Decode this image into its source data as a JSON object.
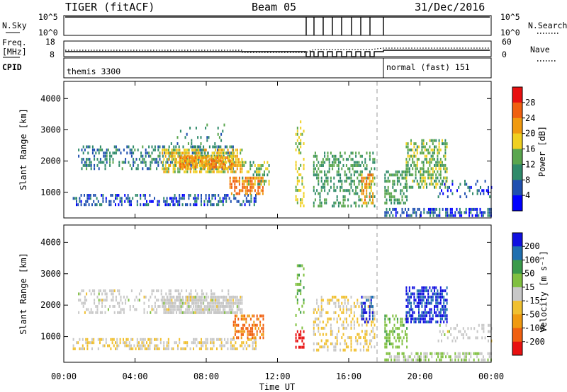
{
  "header": {
    "radar": "TIGER (fitACF)",
    "beam": "Beam 05",
    "date": "31/Dec/2016"
  },
  "top_panel": {
    "left_label": "N.Sky",
    "right_label": "N.Search",
    "left_ticks": [
      "10^5",
      "10^0"
    ],
    "right_ticks": [
      "10^5",
      "10^0"
    ]
  },
  "freq_panel": {
    "left_label_1": "Freq.",
    "left_label_2": "[MHz]",
    "left_ticks": [
      "18",
      "8"
    ],
    "right_label": "Nave",
    "right_ticks": [
      "60",
      "0"
    ]
  },
  "cpid_panel": {
    "label": "CPID",
    "segment_1": "themis 3300",
    "segment_2": "normal (fast) 151"
  },
  "colors": {
    "power_scale": [
      "#0000ff",
      "#1f4fb0",
      "#2f8a6a",
      "#5aa64e",
      "#f0d020",
      "#f09a10",
      "#f06010",
      "#e81010"
    ],
    "velocity_scale": [
      "#e81010",
      "#f06010",
      "#f09a10",
      "#f0c030",
      "#c8c8c8",
      "#80c040",
      "#3a9a4a",
      "#1f6fb0",
      "#1010e0"
    ]
  },
  "chart_data": [
    {
      "type": "heatmap",
      "title": "",
      "xlabel": "Time UT",
      "ylabel": "Slant Range [km]",
      "x_ticks": [
        "00:00",
        "04:00",
        "08:00",
        "12:00",
        "16:00",
        "20:00",
        "00:00"
      ],
      "x_range_hours": [
        0,
        24
      ],
      "y_ticks": [
        "1000",
        "2000",
        "3000",
        "4000"
      ],
      "ylim": [
        180,
        4550
      ],
      "colorbar_label": "Power [dB]",
      "colorbar_ticks": [
        "4",
        "8",
        "12",
        "16",
        "20",
        "24",
        "28"
      ],
      "colorbar_range": [
        0,
        32
      ],
      "echo_regions": [
        {
          "t0": 0.5,
          "t1": 10.8,
          "r0": 600,
          "r1": 950,
          "value": 6,
          "density": 0.45
        },
        {
          "t0": 0.8,
          "t1": 9.5,
          "r0": 1800,
          "r1": 2500,
          "value": 9,
          "density": 0.35
        },
        {
          "t0": 5.5,
          "t1": 10.0,
          "r0": 1700,
          "r1": 2400,
          "value": 18,
          "density": 0.7
        },
        {
          "t0": 6.5,
          "t1": 9.5,
          "r0": 1850,
          "r1": 2150,
          "value": 22,
          "density": 0.85
        },
        {
          "t0": 9.3,
          "t1": 11.2,
          "r0": 1000,
          "r1": 1500,
          "value": 24,
          "density": 0.6
        },
        {
          "t0": 10.0,
          "t1": 11.5,
          "r0": 1300,
          "r1": 2000,
          "value": 14,
          "density": 0.35
        },
        {
          "t0": 6.0,
          "t1": 9.0,
          "r0": 2500,
          "r1": 3200,
          "value": 10,
          "density": 0.12
        },
        {
          "t0": 13.0,
          "t1": 13.5,
          "r0": 600,
          "r1": 3300,
          "value": 16,
          "density": 0.35
        },
        {
          "t0": 14.0,
          "t1": 17.5,
          "r0": 600,
          "r1": 2300,
          "value": 12,
          "density": 0.35
        },
        {
          "t0": 16.7,
          "t1": 17.4,
          "r0": 700,
          "r1": 1600,
          "value": 22,
          "density": 0.55
        },
        {
          "t0": 18.0,
          "t1": 19.3,
          "r0": 700,
          "r1": 1700,
          "value": 12,
          "density": 0.55
        },
        {
          "t0": 19.2,
          "t1": 21.5,
          "r0": 1200,
          "r1": 2700,
          "value": 14,
          "density": 0.5
        },
        {
          "t0": 18.0,
          "t1": 24.0,
          "r0": 250,
          "r1": 500,
          "value": 6,
          "density": 0.6
        },
        {
          "t0": 21.0,
          "t1": 24.0,
          "r0": 900,
          "r1": 1400,
          "value": 6,
          "density": 0.2
        }
      ]
    },
    {
      "type": "heatmap",
      "title": "",
      "xlabel": "Time UT",
      "ylabel": "Slant Range [km]",
      "x_ticks": [
        "00:00",
        "04:00",
        "08:00",
        "12:00",
        "16:00",
        "20:00",
        "00:00"
      ],
      "x_range_hours": [
        0,
        24
      ],
      "y_ticks": [
        "1000",
        "2000",
        "3000",
        "4000"
      ],
      "ylim": [
        180,
        4550
      ],
      "colorbar_label": "Velocity [m s⁻¹]",
      "colorbar_ticks": [
        "200",
        "100",
        "50",
        "15",
        "-15",
        "-50",
        "-100",
        "-200"
      ],
      "colorbar_range": [
        -250,
        250
      ],
      "echo_regions": [
        {
          "t0": 0.5,
          "t1": 10.8,
          "r0": 600,
          "r1": 950,
          "value": 30,
          "density": 0.45
        },
        {
          "t0": 0.8,
          "t1": 9.5,
          "r0": 1800,
          "r1": 2500,
          "value": 0,
          "density": 0.35
        },
        {
          "t0": 5.5,
          "t1": 10.0,
          "r0": 1800,
          "r1": 2300,
          "value": 0,
          "density": 0.8
        },
        {
          "t0": 9.5,
          "t1": 11.2,
          "r0": 1000,
          "r1": 1700,
          "value": 150,
          "density": 0.5
        },
        {
          "t0": 13.0,
          "t1": 13.5,
          "r0": 700,
          "r1": 1200,
          "value": 220,
          "density": 0.6
        },
        {
          "t0": 13.0,
          "t1": 13.5,
          "r0": 1300,
          "r1": 3300,
          "value": -80,
          "density": 0.25
        },
        {
          "t0": 14.0,
          "t1": 17.5,
          "r0": 600,
          "r1": 2300,
          "value": 30,
          "density": 0.35
        },
        {
          "t0": 16.7,
          "t1": 17.4,
          "r0": 1500,
          "r1": 2300,
          "value": -200,
          "density": 0.5
        },
        {
          "t0": 18.0,
          "t1": 19.3,
          "r0": 700,
          "r1": 1700,
          "value": -60,
          "density": 0.5
        },
        {
          "t0": 19.2,
          "t1": 21.5,
          "r0": 1500,
          "r1": 2600,
          "value": -200,
          "density": 0.65
        },
        {
          "t0": 18.0,
          "t1": 24.0,
          "r0": 250,
          "r1": 500,
          "value": -30,
          "density": 0.55
        },
        {
          "t0": 21.0,
          "t1": 24.0,
          "r0": 900,
          "r1": 1400,
          "value": 0,
          "density": 0.25
        }
      ]
    }
  ]
}
